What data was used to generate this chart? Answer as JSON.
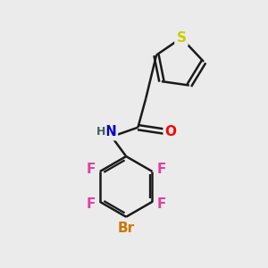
{
  "bg_color": "#ebebeb",
  "bond_color": "#1a1a1a",
  "bond_width": 1.8,
  "atom_colors": {
    "S": "#cccc00",
    "O": "#ff0000",
    "N": "#0000cc",
    "H": "#406060",
    "F": "#e040a0",
    "Br": "#cc7700",
    "C": "#1a1a1a"
  },
  "font_size_atom": 11,
  "font_size_h": 9,
  "figsize": [
    3.0,
    3.0
  ],
  "dpi": 100
}
